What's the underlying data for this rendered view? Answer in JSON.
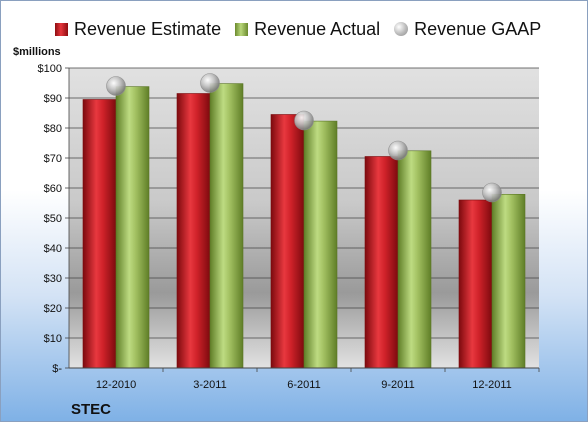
{
  "chart_data": {
    "type": "bar",
    "ylabel": "$millions",
    "company": "STEC",
    "categories": [
      "12-2010",
      "3-2011",
      "6-2011",
      "9-2011",
      "12-2011"
    ],
    "ylim": [
      0,
      100
    ],
    "yticks": [
      {
        "value": 0,
        "label": "$-"
      },
      {
        "value": 10,
        "label": "$10"
      },
      {
        "value": 20,
        "label": "$20"
      },
      {
        "value": 30,
        "label": "$30"
      },
      {
        "value": 40,
        "label": "$40"
      },
      {
        "value": 50,
        "label": "$50"
      },
      {
        "value": 60,
        "label": "$60"
      },
      {
        "value": 70,
        "label": "$70"
      },
      {
        "value": 80,
        "label": "$80"
      },
      {
        "value": 90,
        "label": "$90"
      },
      {
        "value": 100,
        "label": "$100"
      }
    ],
    "grid": true,
    "legend_position": "top",
    "series": [
      {
        "name": "Revenue Estimate",
        "kind": "bar",
        "color": "#c8161d",
        "values": [
          89.5,
          91.5,
          84.5,
          70.5,
          56.0
        ]
      },
      {
        "name": "Revenue Actual",
        "kind": "bar",
        "color": "#9bbb59",
        "values": [
          93.8,
          94.8,
          82.3,
          72.4,
          57.9
        ]
      },
      {
        "name": "Revenue GAAP",
        "kind": "marker",
        "color": "#b0b0b0",
        "values": [
          94.0,
          95.0,
          82.5,
          72.5,
          58.5
        ]
      }
    ]
  }
}
